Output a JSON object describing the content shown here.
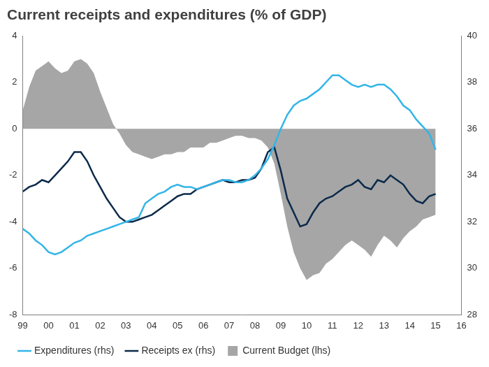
{
  "chart_data": {
    "type": "line",
    "title": "Current receipts and expenditures (% of GDP)",
    "categories": [
      "99",
      null,
      null,
      null,
      "00",
      null,
      null,
      null,
      "01",
      null,
      null,
      null,
      "02",
      null,
      null,
      null,
      "03",
      null,
      null,
      null,
      "04",
      null,
      null,
      null,
      "05",
      null,
      null,
      null,
      "06",
      null,
      null,
      null,
      "07",
      null,
      null,
      null,
      "08",
      null,
      null,
      null,
      "09",
      null,
      null,
      null,
      "10",
      null,
      null,
      null,
      "11",
      null,
      null,
      null,
      "12",
      null,
      null,
      null,
      "13",
      null,
      null,
      null,
      "14",
      null,
      null,
      null,
      "15",
      null,
      null,
      null,
      "16"
    ],
    "series": [
      {
        "name": "Current Budget (lhs)",
        "type": "area",
        "color": "#a6a6a6",
        "axis": "y",
        "values": [
          0.8,
          1.8,
          2.5,
          2.7,
          2.9,
          2.6,
          2.4,
          2.5,
          2.9,
          3.0,
          2.8,
          2.4,
          1.6,
          0.9,
          0.2,
          -0.2,
          -0.7,
          -1.0,
          -1.1,
          -1.2,
          -1.3,
          -1.2,
          -1.1,
          -1.1,
          -1.0,
          -1.0,
          -0.8,
          -0.8,
          -0.8,
          -0.6,
          -0.6,
          -0.5,
          -0.4,
          -0.3,
          -0.3,
          -0.4,
          -0.4,
          -0.5,
          -0.8,
          -1.5,
          -2.8,
          -4.2,
          -5.3,
          -6.0,
          -6.5,
          -6.3,
          -6.2,
          -5.8,
          -5.6,
          -5.3,
          -5.0,
          -4.8,
          -5.0,
          -5.2,
          -5.5,
          -5.0,
          -4.6,
          -4.8,
          -5.1,
          -4.7,
          -4.4,
          -4.2,
          -3.9,
          -3.8,
          -3.7,
          null,
          null,
          null,
          null
        ]
      },
      {
        "name": "Receipts ex (rhs)",
        "type": "line",
        "color": "#0b2a4a",
        "axis": "y2",
        "values": [
          33.3,
          33.5,
          33.6,
          33.8,
          33.7,
          34.0,
          34.3,
          34.6,
          35.0,
          35.0,
          34.6,
          34.0,
          33.5,
          33.0,
          32.6,
          32.2,
          32.0,
          32.0,
          32.1,
          32.2,
          32.3,
          32.5,
          32.7,
          32.9,
          33.1,
          33.2,
          33.2,
          33.4,
          33.5,
          33.6,
          33.7,
          33.8,
          33.7,
          33.7,
          33.8,
          33.8,
          33.9,
          34.3,
          35.0,
          35.2,
          34.2,
          33.0,
          32.4,
          31.8,
          31.9,
          32.4,
          32.8,
          33.0,
          33.1,
          33.3,
          33.5,
          33.6,
          33.8,
          33.5,
          33.4,
          33.8,
          33.7,
          34.0,
          33.8,
          33.6,
          33.2,
          32.9,
          32.8,
          33.1,
          33.2,
          null,
          null,
          null,
          null
        ]
      },
      {
        "name": "Expenditures (rhs)",
        "type": "line",
        "color": "#33b5e8",
        "axis": "y2",
        "values": [
          31.7,
          31.5,
          31.2,
          31.0,
          30.7,
          30.6,
          30.7,
          30.9,
          31.1,
          31.2,
          31.4,
          31.5,
          31.6,
          31.7,
          31.8,
          31.9,
          32.0,
          32.1,
          32.2,
          32.8,
          33.0,
          33.2,
          33.3,
          33.5,
          33.6,
          33.5,
          33.5,
          33.4,
          33.5,
          33.6,
          33.7,
          33.8,
          33.8,
          33.7,
          33.7,
          33.8,
          34.0,
          34.3,
          34.7,
          35.3,
          36.0,
          36.6,
          37.0,
          37.2,
          37.3,
          37.5,
          37.7,
          38.0,
          38.3,
          38.3,
          38.1,
          37.9,
          37.8,
          37.9,
          37.8,
          37.9,
          37.9,
          37.7,
          37.4,
          37.0,
          36.8,
          36.4,
          36.1,
          35.8,
          35.1,
          null,
          null,
          null,
          null
        ]
      }
    ],
    "ylim": [
      -8,
      4
    ],
    "yticks": [
      -8,
      -6,
      -4,
      -2,
      0,
      2,
      4
    ],
    "y2lim": [
      28,
      40
    ],
    "y2ticks": [
      28,
      30,
      32,
      34,
      36,
      38,
      40
    ],
    "grid": false,
    "legend": "bottom"
  }
}
